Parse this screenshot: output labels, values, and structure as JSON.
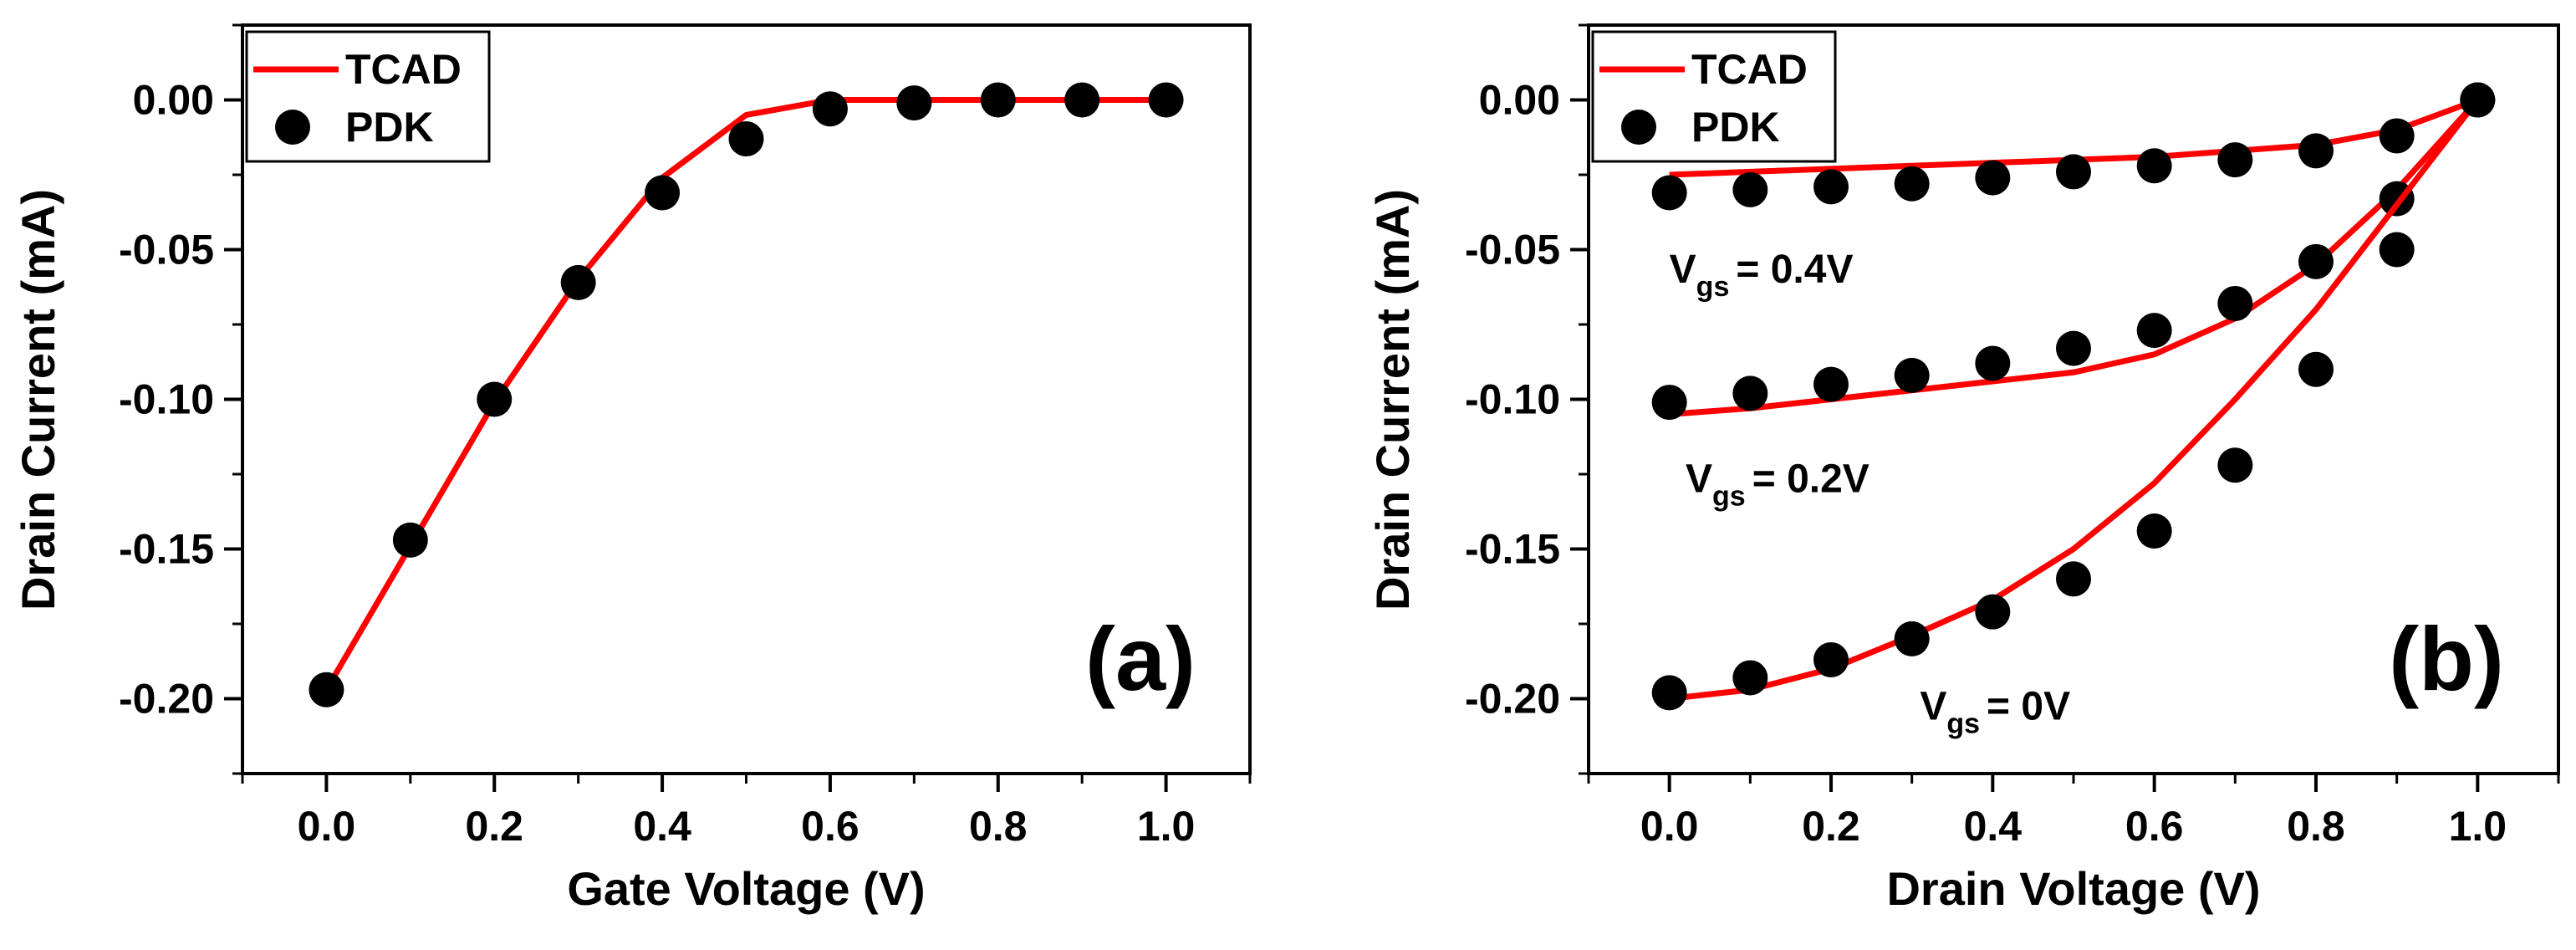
{
  "chart_data": [
    {
      "type": "line",
      "panel_label": "(a)",
      "xlabel": "Gate Voltage (V)",
      "ylabel": "Drain Current (mA)",
      "xlim": [
        -0.1,
        1.1
      ],
      "ylim": [
        -0.225,
        0.025
      ],
      "xticks": [
        "0.0",
        "0.2",
        "0.4",
        "0.6",
        "0.8",
        "1.0"
      ],
      "yticks": [
        "0.00",
        "-0.05",
        "-0.10",
        "-0.15",
        "-0.20"
      ],
      "legend": {
        "position": "top-left",
        "entries": [
          "TCAD",
          "PDK"
        ]
      },
      "series": [
        {
          "name": "TCAD",
          "style": "line",
          "color": "#ff0000",
          "x": [
            0.0,
            0.1,
            0.2,
            0.3,
            0.4,
            0.5,
            0.6,
            0.7,
            0.8,
            0.9,
            1.0
          ],
          "y": [
            -0.197,
            -0.149,
            -0.101,
            -0.06,
            -0.026,
            -0.005,
            0.0,
            0.0,
            0.0,
            0.0,
            0.0
          ]
        },
        {
          "name": "PDK",
          "style": "scatter",
          "color": "#000000",
          "x": [
            0.0,
            0.1,
            0.2,
            0.3,
            0.4,
            0.5,
            0.6,
            0.7,
            0.8,
            0.9,
            1.0
          ],
          "y": [
            -0.197,
            -0.147,
            -0.1,
            -0.061,
            -0.031,
            -0.013,
            -0.003,
            -0.001,
            0.0,
            0.0,
            0.0
          ]
        }
      ]
    },
    {
      "type": "line",
      "panel_label": "(b)",
      "xlabel": "Drain Voltage (V)",
      "ylabel": "Drain Current (mA)",
      "xlim": [
        -0.1,
        1.1
      ],
      "ylim": [
        -0.225,
        0.025
      ],
      "xticks": [
        "0.0",
        "0.2",
        "0.4",
        "0.6",
        "0.8",
        "1.0"
      ],
      "yticks": [
        "0.00",
        "-0.05",
        "-0.10",
        "-0.15",
        "-0.20"
      ],
      "legend": {
        "position": "top-left",
        "entries": [
          "TCAD",
          "PDK"
        ]
      },
      "annotations": [
        {
          "main": "V",
          "sub": "gs",
          "rest": "= 0.4V",
          "ax": 0.0,
          "ay": -0.061
        },
        {
          "main": "V",
          "sub": "gs",
          "rest": "= 0.2V",
          "ax": 0.02,
          "ay": -0.131
        },
        {
          "main": "V",
          "sub": "gs",
          "rest": "= 0V",
          "ax": 0.31,
          "ay": -0.207
        }
      ],
      "series": [
        {
          "name": "TCAD",
          "group": "Vgs = 0.4V",
          "style": "line",
          "color": "#ff0000",
          "x": [
            0.0,
            0.1,
            0.2,
            0.3,
            0.4,
            0.5,
            0.6,
            0.7,
            0.8,
            0.9,
            1.0
          ],
          "y": [
            -0.025,
            -0.024,
            -0.023,
            -0.022,
            -0.021,
            -0.02,
            -0.019,
            -0.017,
            -0.015,
            -0.01,
            0.0
          ]
        },
        {
          "name": "PDK",
          "group": "Vgs = 0.4V",
          "style": "scatter",
          "color": "#000000",
          "x": [
            0.0,
            0.1,
            0.2,
            0.3,
            0.4,
            0.5,
            0.6,
            0.7,
            0.8,
            0.9,
            1.0
          ],
          "y": [
            -0.031,
            -0.03,
            -0.029,
            -0.028,
            -0.026,
            -0.024,
            -0.022,
            -0.02,
            -0.017,
            -0.012,
            0.0
          ]
        },
        {
          "name": "TCAD",
          "group": "Vgs = 0.2V",
          "style": "line",
          "color": "#ff0000",
          "x": [
            0.0,
            0.1,
            0.2,
            0.3,
            0.4,
            0.5,
            0.6,
            0.7,
            0.8,
            0.9,
            1.0
          ],
          "y": [
            -0.105,
            -0.103,
            -0.1,
            -0.097,
            -0.094,
            -0.091,
            -0.085,
            -0.073,
            -0.055,
            -0.03,
            0.0
          ]
        },
        {
          "name": "PDK",
          "group": "Vgs = 0.2V",
          "style": "scatter",
          "color": "#000000",
          "x": [
            0.0,
            0.1,
            0.2,
            0.3,
            0.4,
            0.5,
            0.6,
            0.7,
            0.8,
            0.9,
            1.0
          ],
          "y": [
            -0.101,
            -0.098,
            -0.095,
            -0.092,
            -0.088,
            -0.083,
            -0.077,
            -0.068,
            -0.054,
            -0.033,
            0.0
          ]
        },
        {
          "name": "TCAD",
          "group": "Vgs = 0V",
          "style": "line",
          "color": "#ff0000",
          "x": [
            0.0,
            0.1,
            0.2,
            0.3,
            0.4,
            0.5,
            0.6,
            0.7,
            0.8,
            0.9,
            1.0
          ],
          "y": [
            -0.2,
            -0.197,
            -0.19,
            -0.179,
            -0.167,
            -0.15,
            -0.128,
            -0.1,
            -0.07,
            -0.035,
            0.0
          ]
        },
        {
          "name": "PDK",
          "group": "Vgs = 0V",
          "style": "scatter",
          "color": "#000000",
          "x": [
            0.0,
            0.1,
            0.2,
            0.3,
            0.4,
            0.5,
            0.6,
            0.7,
            0.8,
            0.9,
            1.0
          ],
          "y": [
            -0.198,
            -0.193,
            -0.187,
            -0.18,
            -0.171,
            -0.16,
            -0.144,
            -0.122,
            -0.09,
            -0.05,
            0.0
          ]
        }
      ]
    }
  ]
}
